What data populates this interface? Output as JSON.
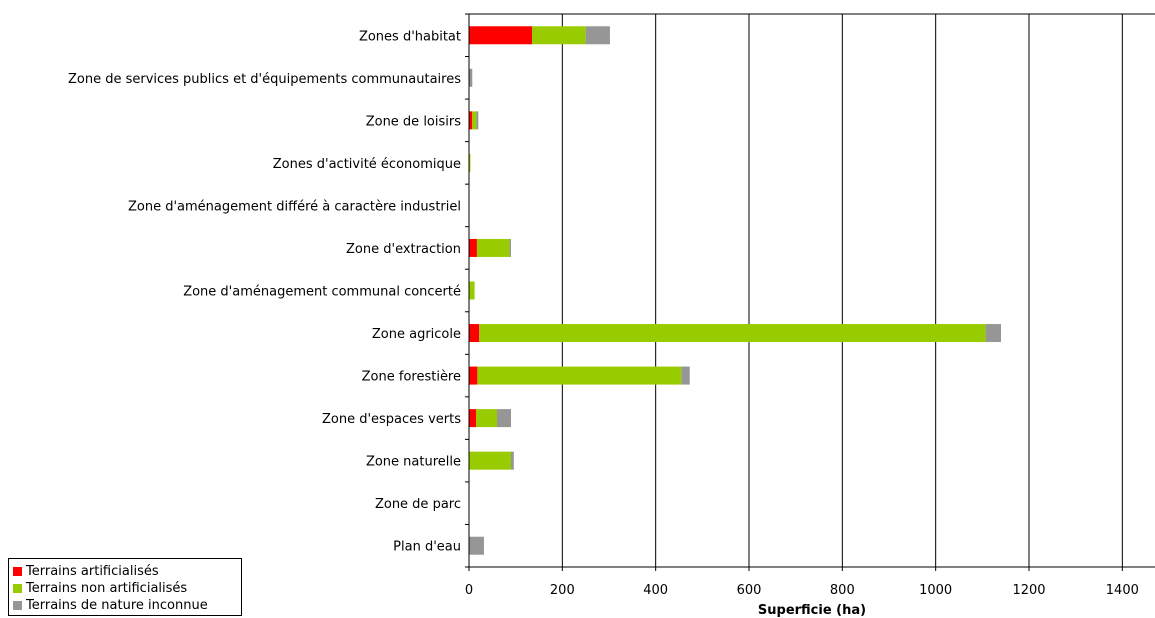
{
  "chart_data": {
    "type": "bar",
    "orientation": "horizontal",
    "stacked": true,
    "categories": [
      "Zones d'habitat",
      "Zone de services publics et d'équipements communautaires",
      "Zone de loisirs",
      "Zones d'activité économique",
      "Zone d'aménagement différé à caractère industriel",
      "Zone d'extraction",
      "Zone d'aménagement communal concerté",
      "Zone agricole",
      "Zone forestière",
      "Zone d'espaces verts",
      "Zone naturelle",
      "Zone de parc",
      "Plan d'eau"
    ],
    "series": [
      {
        "name": "Terrains artificialisés",
        "color": "#ff0000",
        "values": [
          135,
          0,
          7,
          0,
          0,
          17,
          0,
          22,
          18,
          15,
          0,
          0,
          0
        ]
      },
      {
        "name": "Terrains non artificialisés",
        "color": "#99cc00",
        "values": [
          115,
          0,
          9,
          3,
          0,
          70,
          12,
          1085,
          437,
          45,
          90,
          0,
          0
        ]
      },
      {
        "name": "Terrains de nature inconnue",
        "color": "#969696",
        "values": [
          52,
          7,
          4,
          0,
          0,
          3,
          0,
          33,
          18,
          30,
          6,
          0,
          32
        ]
      }
    ],
    "xlabel": "Superficie (ha)",
    "ylabel": "",
    "title": "",
    "xlim": [
      0,
      1470
    ],
    "xticks": [
      0,
      200,
      400,
      600,
      800,
      1000,
      1200,
      1400
    ],
    "grid": "vertical",
    "legend_position": "bottom-left"
  }
}
